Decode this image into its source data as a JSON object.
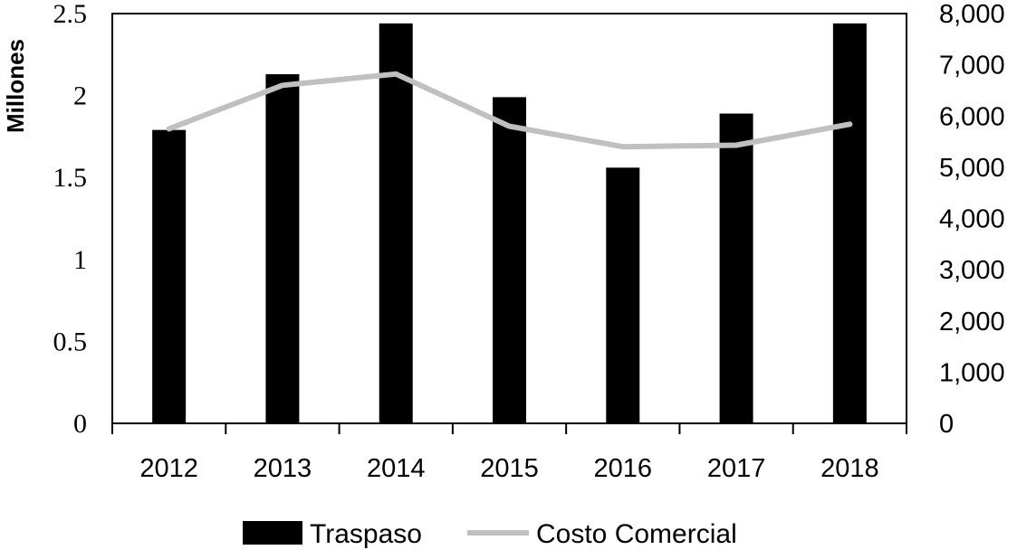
{
  "chart_data": {
    "type": "bar",
    "title": "",
    "categories": [
      "2012",
      "2013",
      "2014",
      "2015",
      "2016",
      "2017",
      "2018"
    ],
    "series": [
      {
        "name": "Traspaso",
        "kind": "bar",
        "axis": "left",
        "color": "#000000",
        "values": [
          1.79,
          2.13,
          2.44,
          1.99,
          1.56,
          1.89,
          2.44
        ]
      },
      {
        "name": "Costo Comercial",
        "kind": "line",
        "axis": "right",
        "color": "#c0c0c0",
        "values": [
          5750,
          6600,
          6820,
          5800,
          5400,
          5430,
          5840
        ]
      }
    ],
    "y_left": {
      "label": "Millones",
      "ylim": [
        0,
        2.5
      ],
      "ticks": [
        "0",
        "0.5",
        "1",
        "1.5",
        "2",
        "2.5"
      ]
    },
    "y_right": {
      "label": "",
      "ylim": [
        0,
        8000
      ],
      "ticks": [
        "0",
        "1,000",
        "2,000",
        "3,000",
        "4,000",
        "5,000",
        "6,000",
        "7,000",
        "8,000"
      ]
    },
    "grid": false,
    "legend": "bottom"
  }
}
